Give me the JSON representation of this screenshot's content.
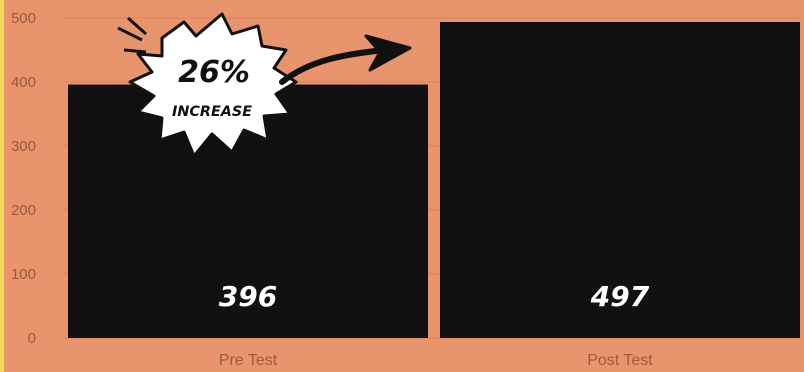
{
  "chart_data": {
    "type": "bar",
    "categories": [
      "Pre Test",
      "Post Test"
    ],
    "values": [
      396,
      497
    ],
    "value_labels": [
      "396",
      "497"
    ],
    "ylim": [
      0,
      500
    ],
    "yticks": [
      0,
      100,
      200,
      300,
      400,
      500
    ],
    "grid": true,
    "annotation": {
      "value": "26%",
      "label": "INCREASE"
    },
    "colors": {
      "background": "#e8946c",
      "bar": "#111111",
      "grid": "#d98258",
      "tick": "#9a5a3c",
      "burst": "#ffffff"
    }
  }
}
